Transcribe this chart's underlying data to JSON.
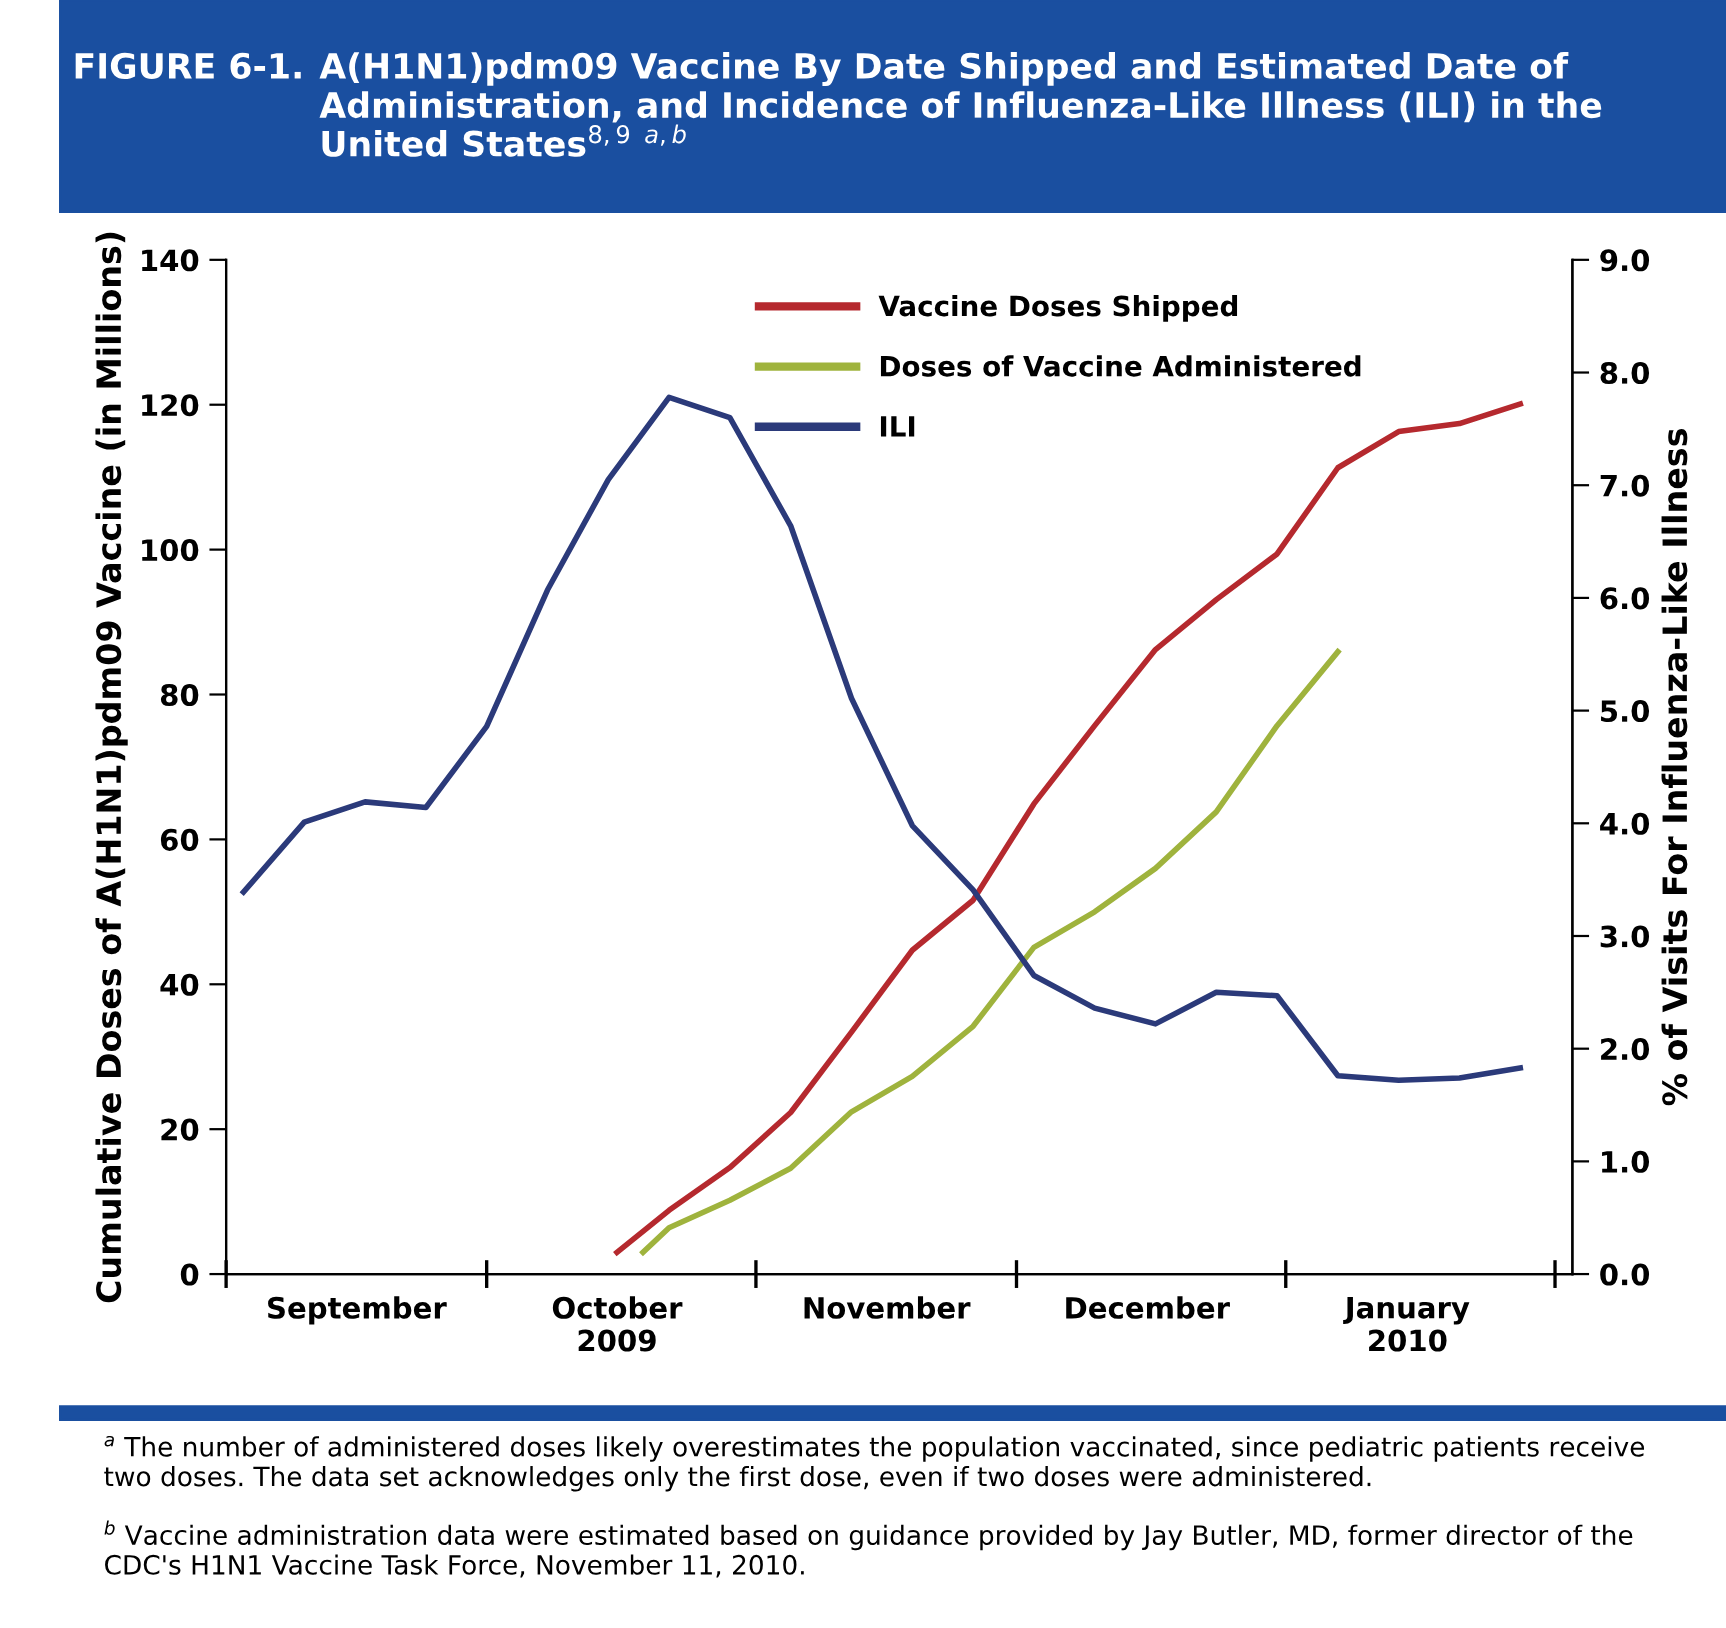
{
  "chart_data": {
    "type": "line",
    "title": "A(H1N1)pdm09 Vaccine By Date Shipped and Estimated Date of Administration, and Incidence of Influenza-Like Illness (ILI) in the United States$^{8,9}$ $^{a,b}$",
    "ylabel": "Cumulative Doses of A(H1N1)pdm09 Vaccine (in Millions)",
    "y2label": "% of Visits For Influenza-Like Illness",
    "annotations": [
      "FIGURE 6-1.",
      "$^{a}$ The number of administered doses likely overestimates the population vaccinated, since pediatric patients receive two doses. The data set acknowledges only the first dose, even if two doses were administered.",
      "$^{b}$ Vaccine administration data were estimated based on guidance provided by Jay Butler, MD, former director of the CDC's H1N1 Vaccine Task Force, November 11, 2010."
    ],
    "series": [
      {
        "name": "Vaccine Doses Shipped",
        "color": "#b5292e",
        "x": [
          "2009-10-16",
          "2009-10-22",
          "2009-10-29",
          "2009-11-05",
          "2009-11-12",
          "2009-11-19",
          "2009-11-26",
          "2009-12-03",
          "2009-12-10",
          "2009-12-17",
          "2009-12-24",
          "2009-12-31",
          "2010-01-07",
          "2010-01-14",
          "2010-01-21",
          "2010-01-28"
        ],
        "values": [
          3,
          8.8,
          14.7,
          22.3,
          33.4,
          44.7,
          51.6,
          64.9,
          75.7,
          86.2,
          93.1,
          99.4,
          111.3,
          116.3,
          117.4,
          120.1
        ]
      },
      {
        "name": "Doses of Vaccine Administered",
        "color": "#9fb33d",
        "x": [
          "2009-10-19",
          "2009-10-22",
          "2009-10-29",
          "2009-11-05",
          "2009-11-12",
          "2009-11-19",
          "2009-11-26",
          "2009-12-03",
          "2009-12-10",
          "2009-12-17",
          "2009-12-24",
          "2009-12-31",
          "2010-01-07"
        ],
        "values": [
          3,
          6.4,
          10.2,
          14.6,
          22.4,
          27.3,
          34.2,
          45.1,
          50,
          56,
          63.8,
          75.7,
          85.9
        ]
      },
      {
        "name": "ILI",
        "color": "#2b3a7a",
        "axis": "y2",
        "x": [
          "2009-09-03",
          "2009-09-10",
          "2009-09-17",
          "2009-09-24",
          "2009-10-01",
          "2009-10-08",
          "2009-10-15",
          "2009-10-22",
          "2009-10-29",
          "2009-11-05",
          "2009-11-12",
          "2009-11-19",
          "2009-11-26",
          "2009-12-03",
          "2009-12-10",
          "2009-12-17",
          "2009-12-24",
          "2009-12-31",
          "2010-01-07",
          "2010-01-14",
          "2010-01-21",
          "2010-01-28"
        ],
        "values": [
          3.39,
          4.01,
          4.19,
          4.14,
          4.86,
          6.07,
          7.05,
          7.78,
          7.6,
          6.64,
          5.11,
          3.98,
          3.41,
          2.65,
          2.36,
          2.22,
          2.5,
          2.47,
          1.76,
          1.72,
          1.74,
          1.83
        ]
      }
    ],
    "xlim": [
      "2009-09-01",
      "2010-02-03"
    ],
    "xticks": [
      {
        "value": "2009-09-01",
        "label": null
      },
      {
        "value": "2009-10-01",
        "label": null
      },
      {
        "value": "2009-11-01",
        "label": null
      },
      {
        "value": "2009-12-01",
        "label": null
      },
      {
        "value": "2010-01-01",
        "label": null
      },
      {
        "value": "2010-02-01",
        "label": null
      },
      {
        "value": "2009-09-16",
        "label": "September"
      },
      {
        "value": "2009-10-16",
        "label": "October\n2009"
      },
      {
        "value": "2009-11-16",
        "label": "November"
      },
      {
        "value": "2009-12-16",
        "label": "December"
      },
      {
        "value": "2010-01-15",
        "label": "January\n2010"
      }
    ],
    "ylim": [
      0,
      140
    ],
    "yticks": [
      0,
      20,
      40,
      60,
      80,
      100,
      120,
      140
    ],
    "y2lim": [
      0,
      9
    ],
    "y2ticks": [
      {
        "value": 0,
        "label": "0.0"
      },
      {
        "value": 1,
        "label": "1.0"
      },
      {
        "value": 2,
        "label": "2.0"
      },
      {
        "value": 3,
        "label": "3.0"
      },
      {
        "value": 4,
        "label": "4.0"
      },
      {
        "value": 5,
        "label": "5.0"
      },
      {
        "value": 6,
        "label": "6.0"
      },
      {
        "value": 7,
        "label": "7.0"
      },
      {
        "value": 8,
        "label": "8.0"
      },
      {
        "value": 9,
        "label": "9.0"
      }
    ],
    "grid": false,
    "legend": "top",
    "marker": "none",
    "line_style": "solid"
  }
}
